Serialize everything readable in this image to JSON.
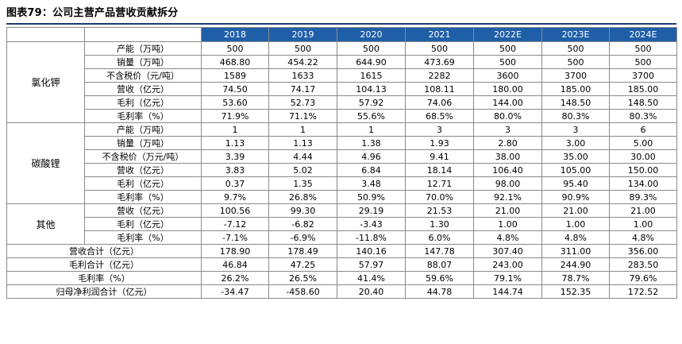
{
  "title": "图表79：公司主营产品营收贡献拆分",
  "years": [
    "2018",
    "2019",
    "2020",
    "2021",
    "2022E",
    "2023E",
    "2024E"
  ],
  "groups": [
    {
      "name": "氯化钾",
      "rows": [
        {
          "metric": "产能（万吨）",
          "values": [
            "500",
            "500",
            "500",
            "500",
            "500",
            "500",
            "500"
          ]
        },
        {
          "metric": "销量（万吨）",
          "values": [
            "468.80",
            "454.22",
            "644.90",
            "473.69",
            "500",
            "500",
            "500"
          ]
        },
        {
          "metric": "不含税价（元/吨）",
          "values": [
            "1589",
            "1633",
            "1615",
            "2282",
            "3600",
            "3700",
            "3700"
          ]
        },
        {
          "metric": "营收（亿元）",
          "values": [
            "74.50",
            "74.17",
            "104.13",
            "108.11",
            "180.00",
            "185.00",
            "185.00"
          ]
        },
        {
          "metric": "毛利（亿元）",
          "values": [
            "53.60",
            "52.73",
            "57.92",
            "74.06",
            "144.00",
            "148.50",
            "148.50"
          ]
        },
        {
          "metric": "毛利率（%）",
          "values": [
            "71.9%",
            "71.1%",
            "55.6%",
            "68.5%",
            "80.0%",
            "80.3%",
            "80.3%"
          ]
        }
      ]
    },
    {
      "name": "碳酸锂",
      "rows": [
        {
          "metric": "产能（万吨）",
          "values": [
            "1",
            "1",
            "1",
            "3",
            "3",
            "3",
            "6"
          ]
        },
        {
          "metric": "销量（万吨）",
          "values": [
            "1.13",
            "1.13",
            "1.38",
            "1.93",
            "2.80",
            "3.00",
            "5.00"
          ]
        },
        {
          "metric": "不含税价（万元/吨）",
          "values": [
            "3.39",
            "4.44",
            "4.96",
            "9.41",
            "38.00",
            "35.00",
            "30.00"
          ]
        },
        {
          "metric": "营收（亿元）",
          "values": [
            "3.83",
            "5.02",
            "6.84",
            "18.14",
            "106.40",
            "105.00",
            "150.00"
          ]
        },
        {
          "metric": "毛利（亿元）",
          "values": [
            "0.37",
            "1.35",
            "3.48",
            "12.71",
            "98.00",
            "95.40",
            "134.00"
          ]
        },
        {
          "metric": "毛利率（%）",
          "values": [
            "9.7%",
            "26.8%",
            "50.9%",
            "70.0%",
            "92.1%",
            "90.9%",
            "89.3%"
          ]
        }
      ]
    },
    {
      "name": "其他",
      "rows": [
        {
          "metric": "营收（亿元）",
          "values": [
            "100.56",
            "99.30",
            "29.19",
            "21.53",
            "21.00",
            "21.00",
            "21.00"
          ]
        },
        {
          "metric": "毛利（亿元）",
          "values": [
            "-7.12",
            "-6.82",
            "-3.43",
            "1.30",
            "1.00",
            "1.00",
            "1.00"
          ]
        },
        {
          "metric": "毛利率（%）",
          "values": [
            "-7.1%",
            "-6.9%",
            "-11.8%",
            "6.0%",
            "4.8%",
            "4.8%",
            "4.8%"
          ]
        }
      ]
    }
  ],
  "totals": [
    {
      "metric": "营收合计（亿元）",
      "values": [
        "178.90",
        "178.49",
        "140.16",
        "147.78",
        "307.40",
        "311.00",
        "356.00"
      ]
    },
    {
      "metric": "毛利合计（亿元）",
      "values": [
        "46.84",
        "47.25",
        "57.97",
        "88.07",
        "243.00",
        "244.90",
        "283.50"
      ]
    },
    {
      "metric": "毛利率（%）",
      "values": [
        "26.2%",
        "26.5%",
        "41.4%",
        "59.6%",
        "79.1%",
        "78.7%",
        "79.6%"
      ]
    },
    {
      "metric": "归母净利润合计（亿元）",
      "values": [
        "-34.47",
        "-458.60",
        "20.40",
        "44.78",
        "144.74",
        "152.35",
        "172.52"
      ]
    }
  ]
}
